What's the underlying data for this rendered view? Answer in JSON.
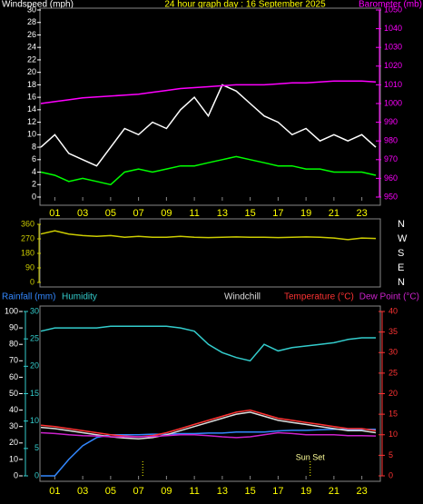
{
  "chart_data": [
    {
      "type": "line",
      "title": "24 hour graph day : 16 September 2025",
      "ylabel": "Windspeed (mph)",
      "y2label": "Barometer (mb)",
      "x": [
        0,
        1,
        2,
        3,
        4,
        5,
        6,
        7,
        8,
        9,
        10,
        11,
        12,
        13,
        14,
        15,
        16,
        17,
        18,
        19,
        20,
        21,
        22,
        23,
        24
      ],
      "xlim": [
        0,
        24
      ],
      "xticks": [
        {
          "value": 1,
          "label": "01"
        },
        {
          "value": 3,
          "label": "03"
        },
        {
          "value": 5,
          "label": "05"
        },
        {
          "value": 7,
          "label": "07"
        },
        {
          "value": 9,
          "label": "09"
        },
        {
          "value": 11,
          "label": "11"
        },
        {
          "value": 13,
          "label": "13"
        },
        {
          "value": 15,
          "label": "15"
        },
        {
          "value": 17,
          "label": "17"
        },
        {
          "value": 19,
          "label": "19"
        },
        {
          "value": 21,
          "label": "21"
        },
        {
          "value": 23,
          "label": "23"
        }
      ],
      "ylim": [
        0,
        30
      ],
      "yticks": [
        0,
        2,
        4,
        6,
        8,
        10,
        12,
        14,
        16,
        18,
        20,
        22,
        24,
        26,
        28,
        30
      ],
      "y2lim": [
        950,
        1050
      ],
      "y2ticks": [
        950,
        960,
        970,
        980,
        990,
        1000,
        1010,
        1020,
        1030,
        1040,
        1050
      ],
      "series": [
        {
          "color": "#ffffff",
          "values": [
            8,
            10,
            7,
            6,
            5,
            8,
            11,
            10,
            12,
            11,
            14,
            16,
            13,
            18,
            17,
            15,
            13,
            12,
            10,
            11,
            9,
            10,
            9,
            10,
            8
          ]
        },
        {
          "color": "#00ff00",
          "values": [
            4,
            3.5,
            2.5,
            3,
            2.5,
            2,
            4,
            4.5,
            4,
            4.5,
            5,
            5,
            5.5,
            6,
            6.5,
            6,
            5.5,
            5,
            5,
            4.5,
            4.5,
            4,
            4,
            4,
            3.5
          ]
        },
        {
          "color": "#ff00ff",
          "axis": "y2",
          "values": [
            1000,
            1001,
            1002,
            1003,
            1003.5,
            1004,
            1004.5,
            1005,
            1006,
            1007,
            1008,
            1008.5,
            1009,
            1009.5,
            1010,
            1010,
            1010,
            1010.5,
            1011,
            1011,
            1011.5,
            1012,
            1012,
            1012,
            1011.5
          ]
        }
      ]
    },
    {
      "type": "line",
      "x": [
        0,
        1,
        2,
        3,
        4,
        5,
        6,
        7,
        8,
        9,
        10,
        11,
        12,
        13,
        14,
        15,
        16,
        17,
        18,
        19,
        20,
        21,
        22,
        23,
        24
      ],
      "xlim": [
        0,
        24
      ],
      "ylim": [
        0,
        360
      ],
      "yticks": [
        0,
        90,
        180,
        270,
        360
      ],
      "compass_labels": [
        "N",
        "W",
        "S",
        "E",
        "N"
      ],
      "series": [
        {
          "color": "#cccc00",
          "values": [
            300,
            320,
            300,
            290,
            285,
            290,
            280,
            285,
            280,
            280,
            285,
            280,
            278,
            280,
            282,
            280,
            280,
            278,
            280,
            282,
            280,
            275,
            265,
            275,
            272
          ]
        }
      ]
    },
    {
      "type": "line",
      "x": [
        0,
        1,
        2,
        3,
        4,
        5,
        6,
        7,
        8,
        9,
        10,
        11,
        12,
        13,
        14,
        15,
        16,
        17,
        18,
        19,
        20,
        21,
        22,
        23,
        24
      ],
      "xlim": [
        0,
        24
      ],
      "xticks": [
        {
          "value": 1,
          "label": "01"
        },
        {
          "value": 3,
          "label": "03"
        },
        {
          "value": 5,
          "label": "05"
        },
        {
          "value": 7,
          "label": "07"
        },
        {
          "value": 9,
          "label": "09"
        },
        {
          "value": 11,
          "label": "11"
        },
        {
          "value": 13,
          "label": "13"
        },
        {
          "value": 15,
          "label": "15"
        },
        {
          "value": 17,
          "label": "17"
        },
        {
          "value": 19,
          "label": "19"
        },
        {
          "value": 21,
          "label": "21"
        },
        {
          "value": 23,
          "label": "23"
        }
      ],
      "ylim": [
        0,
        100
      ],
      "yticks": [
        0,
        10,
        20,
        30,
        40,
        50,
        60,
        70,
        80,
        90,
        100
      ],
      "y2lim": [
        0,
        40
      ],
      "y2ticks": [
        0,
        5,
        10,
        15,
        20,
        25,
        30,
        35,
        40
      ],
      "y3lim": [
        0,
        30
      ],
      "y3ticks": [
        0,
        5,
        10,
        15,
        20,
        25,
        30
      ],
      "sunrise": 7.3,
      "sunset": 19.3,
      "annotation": "Sun Set",
      "series": [
        {
          "name": "Rainfall (mm)",
          "color": "#3388ff",
          "axis": "y3",
          "values": [
            0,
            0,
            3,
            5.5,
            7,
            7.5,
            7.5,
            7.5,
            7.6,
            7.6,
            7.7,
            7.7,
            7.8,
            7.8,
            8,
            8,
            8,
            8.2,
            8.3,
            8.3,
            8.4,
            8.5,
            8.5,
            8.5,
            8.5
          ]
        },
        {
          "name": "Humidity",
          "color": "#33cccc",
          "values": [
            88,
            90,
            90,
            90,
            90,
            91,
            91,
            91,
            91,
            91,
            90,
            88,
            80,
            75,
            72,
            70,
            80,
            76,
            78,
            79,
            80,
            81,
            83,
            84,
            84
          ]
        },
        {
          "name": "Windchill",
          "color": "#dddddd",
          "axis": "y2",
          "values": [
            11.8,
            11.5,
            11,
            10.5,
            10,
            9.5,
            9.2,
            9,
            9.3,
            10,
            11,
            12,
            13,
            14,
            15,
            15.5,
            14.5,
            13.5,
            13,
            12.5,
            12,
            11.5,
            11,
            11,
            10.5
          ]
        },
        {
          "name": "Temperature (°C)",
          "color": "#ff3333",
          "axis": "y2",
          "values": [
            12.3,
            12,
            11.5,
            11,
            10.5,
            10,
            9.7,
            9.5,
            9.8,
            10.5,
            11.5,
            12.5,
            13.5,
            14.5,
            15.5,
            16,
            15,
            14,
            13.5,
            13,
            12.5,
            12,
            11.5,
            11.5,
            11
          ]
        },
        {
          "name": "Dew Point (°C)",
          "color": "#cc22cc",
          "axis": "y2",
          "values": [
            10.5,
            10.3,
            10,
            9.8,
            9.7,
            9.5,
            9.5,
            9.5,
            9.6,
            9.8,
            10,
            10,
            9.8,
            9.5,
            9.3,
            9.5,
            10,
            10.5,
            10.3,
            10,
            10,
            10,
            9.8,
            9.8,
            9.7
          ]
        }
      ]
    }
  ]
}
